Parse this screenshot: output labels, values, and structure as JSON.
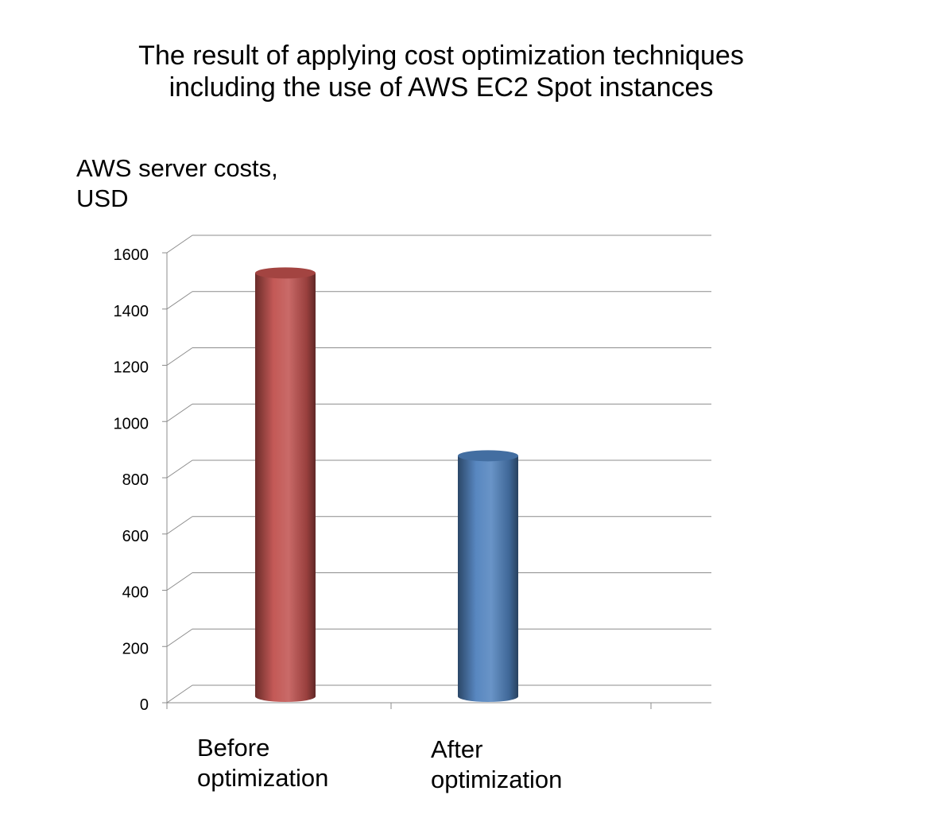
{
  "chart_data": {
    "type": "bar",
    "title_lines": [
      "The result of applying cost optimization techniques",
      "including the use of AWS EC2 Spot instances"
    ],
    "ylabel_lines": [
      "AWS server costs,",
      "USD"
    ],
    "xlabel": "",
    "categories": [
      {
        "lines": [
          "Before",
          "optimization"
        ]
      },
      {
        "lines": [
          "After",
          "optimization"
        ]
      }
    ],
    "series": [
      {
        "values": [
          1500,
          850
        ],
        "colors": [
          "#c0504d",
          "#4f81bd"
        ]
      }
    ],
    "yticks": [
      "0",
      "200",
      "400",
      "600",
      "800",
      "1000",
      "1200",
      "1400",
      "1600"
    ],
    "ylim": [
      0,
      1600
    ],
    "grid": true,
    "style": "3d-cylinder"
  }
}
